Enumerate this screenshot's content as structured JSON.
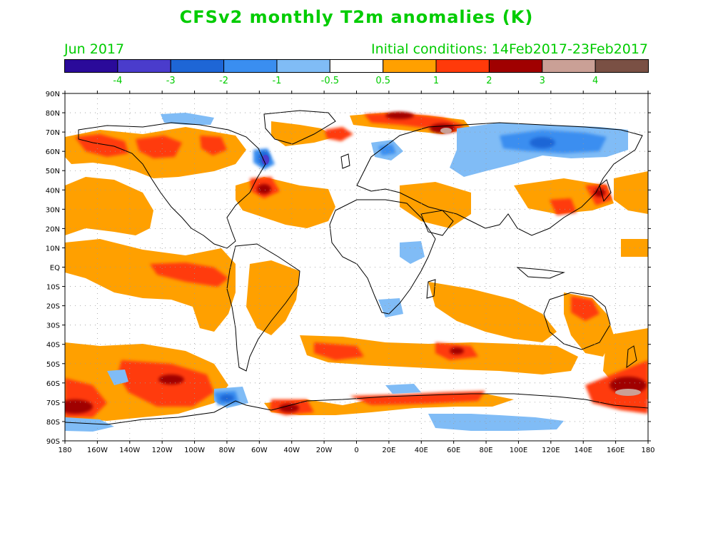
{
  "title": "CFSv2 monthly T2m anomalies (K)",
  "subtitle_left": "Jun 2017",
  "subtitle_right": "Initial conditions: 14Feb2017-23Feb2017",
  "colorbar": {
    "colors": [
      "#2a0a9a",
      "#4a3ccc",
      "#1e66d6",
      "#3a8ef0",
      "#80bcf6",
      "#ffffff",
      "#ffa000",
      "#ff3a0a",
      "#a00000",
      "#caa096",
      "#7a5044"
    ],
    "labels": [
      "-4",
      "-3",
      "-2",
      "-1",
      "-0.5",
      "0.5",
      "1",
      "2",
      "3",
      "4"
    ]
  },
  "lat_labels": [
    "90N",
    "80N",
    "70N",
    "60N",
    "50N",
    "40N",
    "30N",
    "20N",
    "10N",
    "EQ",
    "10S",
    "20S",
    "30S",
    "40S",
    "50S",
    "60S",
    "70S",
    "80S",
    "90S"
  ],
  "lon_labels": [
    "180",
    "160W",
    "140W",
    "120W",
    "100W",
    "80W",
    "60W",
    "40W",
    "20W",
    "0",
    "20E",
    "40E",
    "60E",
    "80E",
    "100E",
    "120E",
    "140E",
    "160E",
    "180"
  ]
}
